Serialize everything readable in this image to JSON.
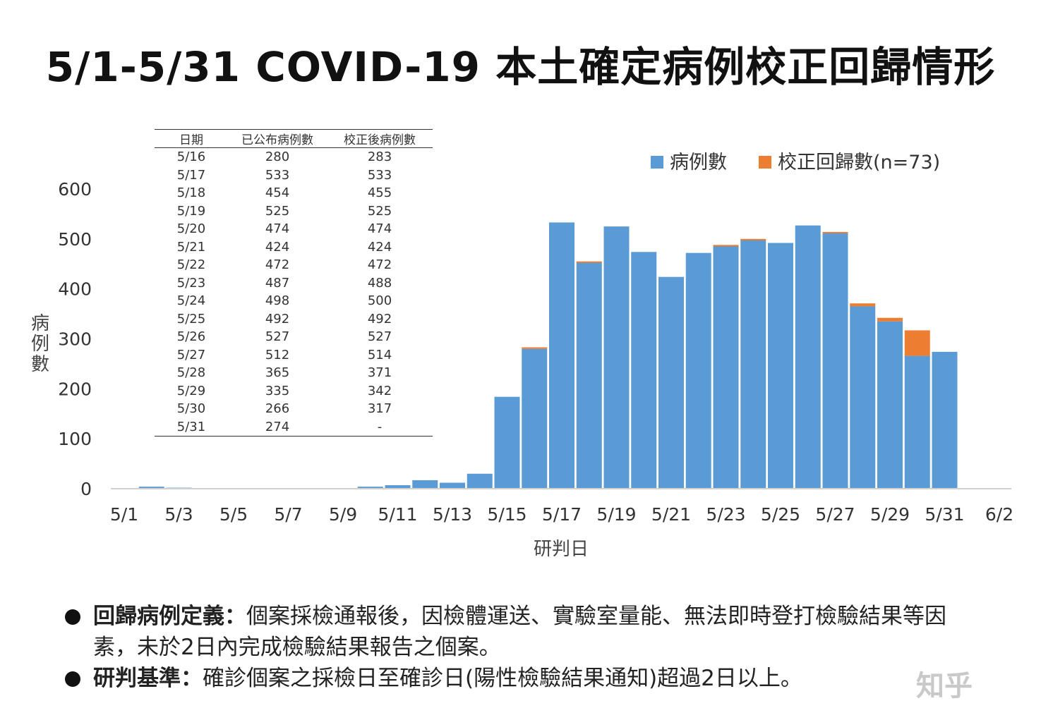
{
  "title": "5/1-5/31 COVID-19 本土確定病例校正回歸情形",
  "chart_data": {
    "type": "bar",
    "stacked": true,
    "ylabel": "病例數",
    "xlabel": "研判日",
    "ylim": [
      0,
      600
    ],
    "yticks": [
      0,
      100,
      200,
      300,
      400,
      500,
      600
    ],
    "xticks": [
      "5/1",
      "5/3",
      "5/5",
      "5/7",
      "5/9",
      "5/11",
      "5/13",
      "5/15",
      "5/17",
      "5/19",
      "5/21",
      "5/23",
      "5/25",
      "5/27",
      "5/29",
      "5/31",
      "6/2"
    ],
    "grid": false,
    "legend_position": "top-right",
    "categories": [
      "5/1",
      "5/2",
      "5/3",
      "5/4",
      "5/5",
      "5/6",
      "5/7",
      "5/8",
      "5/9",
      "5/10",
      "5/11",
      "5/12",
      "5/13",
      "5/14",
      "5/15",
      "5/16",
      "5/17",
      "5/18",
      "5/19",
      "5/20",
      "5/21",
      "5/22",
      "5/23",
      "5/24",
      "5/25",
      "5/26",
      "5/27",
      "5/28",
      "5/29",
      "5/30",
      "5/31"
    ],
    "series": [
      {
        "name": "病例數",
        "color": "#5b9bd5",
        "values": [
          0,
          4,
          2,
          0,
          0,
          0,
          0,
          0,
          0,
          4,
          7,
          17,
          12,
          30,
          184,
          280,
          533,
          454,
          525,
          474,
          424,
          472,
          487,
          498,
          492,
          527,
          512,
          365,
          335,
          266,
          274
        ]
      },
      {
        "name": "校正回歸數(n=73)",
        "color": "#ed7d31",
        "values": [
          0,
          0,
          0,
          0,
          0,
          0,
          0,
          0,
          0,
          0,
          0,
          0,
          0,
          0,
          0,
          3,
          0,
          1,
          0,
          0,
          0,
          0,
          1,
          2,
          0,
          0,
          2,
          6,
          7,
          51,
          0
        ]
      }
    ],
    "table": {
      "headers": [
        "日期",
        "已公布病例數",
        "校正後病例數"
      ],
      "rows": [
        [
          "5/16",
          "280",
          "283"
        ],
        [
          "5/17",
          "533",
          "533"
        ],
        [
          "5/18",
          "454",
          "455"
        ],
        [
          "5/19",
          "525",
          "525"
        ],
        [
          "5/20",
          "474",
          "474"
        ],
        [
          "5/21",
          "424",
          "424"
        ],
        [
          "5/22",
          "472",
          "472"
        ],
        [
          "5/23",
          "487",
          "488"
        ],
        [
          "5/24",
          "498",
          "500"
        ],
        [
          "5/25",
          "492",
          "492"
        ],
        [
          "5/26",
          "527",
          "527"
        ],
        [
          "5/27",
          "512",
          "514"
        ],
        [
          "5/28",
          "365",
          "371"
        ],
        [
          "5/29",
          "335",
          "342"
        ],
        [
          "5/30",
          "266",
          "317"
        ],
        [
          "5/31",
          "274",
          "-"
        ]
      ]
    }
  },
  "notes": [
    {
      "term": "回歸病例定義：",
      "text": "個案採檢通報後，因檢體運送、實驗室量能、無法即時登打檢驗結果等因素，未於2日內完成檢驗結果報告之個案。"
    },
    {
      "term": "研判基準：",
      "text": "確診個案之採檢日至確診日(陽性檢驗結果通知)超過2日以上。"
    }
  ],
  "watermark": "知乎"
}
